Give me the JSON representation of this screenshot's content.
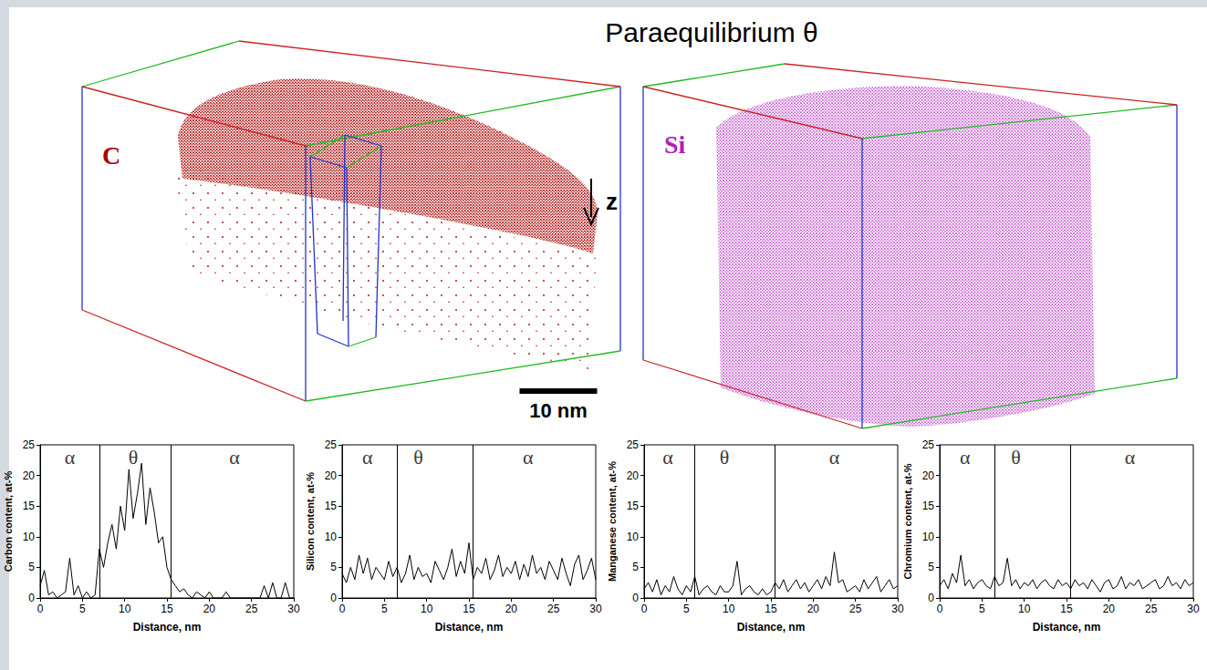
{
  "figure": {
    "title": "Paraequilibrium θ",
    "axis_label": "z",
    "maps": [
      {
        "label": "C",
        "color": "#a80000"
      },
      {
        "label": "Si",
        "color": "#b01fbf"
      }
    ],
    "scale_bar": {
      "length": 10,
      "label": "10 nm"
    }
  },
  "chart_data": [
    {
      "type": "line",
      "color": "#000000",
      "xlabel": "Distance, nm",
      "ylabel": "Carbon content, at-%",
      "x": [
        0,
        0.5,
        1,
        1.5,
        2,
        2.5,
        3,
        3.5,
        4,
        4.5,
        5,
        5.5,
        6,
        6.5,
        7,
        7.5,
        8,
        8.5,
        9,
        9.5,
        10,
        10.5,
        11,
        11.5,
        12,
        12.5,
        13,
        13.5,
        14,
        14.5,
        15,
        15.5,
        16,
        16.5,
        17,
        17.5,
        18,
        18.5,
        19,
        19.5,
        20,
        20.5,
        21,
        21.5,
        22,
        22.5,
        23,
        23.5,
        24,
        24.5,
        25,
        25.5,
        26,
        26.5,
        27,
        27.5,
        28,
        28.5,
        29,
        29.5,
        30
      ],
      "values": [
        2,
        4.5,
        0.5,
        1,
        0,
        0.5,
        1,
        6.5,
        0.5,
        2,
        0,
        1,
        0,
        0.5,
        8,
        5,
        9,
        12,
        8,
        15,
        11,
        21,
        13,
        17,
        22,
        12,
        18,
        14,
        9,
        10,
        5,
        3,
        2,
        1,
        1.5,
        0.5,
        0,
        1,
        0.5,
        0,
        1,
        0,
        0,
        0,
        1,
        0,
        0,
        0,
        0,
        0,
        0,
        0,
        0,
        2,
        0,
        2.5,
        0,
        0,
        2.5,
        0,
        0
      ],
      "xlim": [
        0,
        30
      ],
      "xticks": [
        0,
        5,
        10,
        15,
        20,
        25,
        30
      ],
      "ylim": [
        0,
        25
      ],
      "yticks": [
        0,
        5,
        10,
        15,
        20,
        25
      ],
      "phase_boundaries": [
        7,
        15.5
      ],
      "annotations": [
        {
          "text": "α",
          "x": 3.5
        },
        {
          "text": "θ",
          "x": 11
        },
        {
          "text": "α",
          "x": 23
        }
      ]
    },
    {
      "type": "line",
      "color": "#000000",
      "xlabel": "Distance, nm",
      "ylabel": "Silicon content, at-%",
      "x": [
        0,
        0.5,
        1,
        1.5,
        2,
        2.5,
        3,
        3.5,
        4,
        4.5,
        5,
        5.5,
        6,
        6.5,
        7,
        7.5,
        8,
        8.5,
        9,
        9.5,
        10,
        10.5,
        11,
        11.5,
        12,
        12.5,
        13,
        13.5,
        14,
        14.5,
        15,
        15.5,
        16,
        16.5,
        17,
        17.5,
        18,
        18.5,
        19,
        19.5,
        20,
        20.5,
        21,
        21.5,
        22,
        22.5,
        23,
        23.5,
        24,
        24.5,
        25,
        25.5,
        26,
        26.5,
        27,
        27.5,
        28,
        28.5,
        29,
        29.5,
        30
      ],
      "values": [
        4,
        2.5,
        5,
        3,
        7,
        4,
        6.5,
        3,
        5,
        4,
        3,
        6,
        3.5,
        5,
        2.5,
        4,
        7,
        3,
        5,
        3.5,
        4,
        2.5,
        6,
        4.5,
        3,
        5,
        8,
        3.5,
        6,
        4,
        9,
        3,
        5,
        4,
        6.5,
        3,
        4.5,
        7,
        3.5,
        5,
        4,
        6,
        3,
        5.5,
        3.5,
        7,
        4,
        5,
        3,
        6,
        4.5,
        3,
        6.5,
        4,
        2,
        5.5,
        7,
        3,
        4.5,
        6.5,
        3
      ],
      "xlim": [
        0,
        30
      ],
      "xticks": [
        0,
        5,
        10,
        15,
        20,
        25,
        30
      ],
      "ylim": [
        0,
        25
      ],
      "yticks": [
        0,
        5,
        10,
        15,
        20,
        25
      ],
      "phase_boundaries": [
        6.5,
        15.5
      ],
      "annotations": [
        {
          "text": "α",
          "x": 3
        },
        {
          "text": "θ",
          "x": 9
        },
        {
          "text": "α",
          "x": 22
        }
      ]
    },
    {
      "type": "line",
      "color": "#000000",
      "xlabel": "Distance, nm",
      "ylabel": "Manganese content, at-%",
      "x": [
        0,
        0.5,
        1,
        1.5,
        2,
        2.5,
        3,
        3.5,
        4,
        4.5,
        5,
        5.5,
        6,
        6.5,
        7,
        7.5,
        8,
        8.5,
        9,
        9.5,
        10,
        10.5,
        11,
        11.5,
        12,
        12.5,
        13,
        13.5,
        14,
        14.5,
        15,
        15.5,
        16,
        16.5,
        17,
        17.5,
        18,
        18.5,
        19,
        19.5,
        20,
        20.5,
        21,
        21.5,
        22,
        22.5,
        23,
        23.5,
        24,
        24.5,
        25,
        25.5,
        26,
        26.5,
        27,
        27.5,
        28,
        28.5,
        29,
        29.5,
        30
      ],
      "values": [
        1.5,
        2.5,
        1,
        3,
        0.5,
        2,
        1,
        3.5,
        1.5,
        0.5,
        2,
        1,
        3.5,
        0.5,
        1.5,
        2,
        1,
        0.5,
        2,
        1,
        1,
        2,
        6,
        0.5,
        1.5,
        2,
        1,
        0.5,
        1.5,
        0.5,
        1,
        2.5,
        1.5,
        3,
        1,
        2,
        3,
        1.5,
        2.5,
        1,
        2,
        3,
        1.5,
        3.5,
        2,
        7.5,
        2.5,
        3,
        1,
        1.5,
        2,
        1,
        3,
        1.5,
        2.5,
        3.5,
        1,
        2,
        3,
        1.5,
        2
      ],
      "xlim": [
        0,
        30
      ],
      "xticks": [
        0,
        5,
        10,
        15,
        20,
        25,
        30
      ],
      "ylim": [
        0,
        25
      ],
      "yticks": [
        0,
        5,
        10,
        15,
        20,
        25
      ],
      "phase_boundaries": [
        6,
        15.5
      ],
      "annotations": [
        {
          "text": "α",
          "x": 2.8
        },
        {
          "text": "θ",
          "x": 9.5
        },
        {
          "text": "α",
          "x": 22.5
        }
      ]
    },
    {
      "type": "line",
      "color": "#000000",
      "xlabel": "Distance, nm",
      "ylabel": "Chromium content, at-%",
      "x": [
        0,
        0.5,
        1,
        1.5,
        2,
        2.5,
        3,
        3.5,
        4,
        4.5,
        5,
        5.5,
        6,
        6.5,
        7,
        7.5,
        8,
        8.5,
        9,
        9.5,
        10,
        10.5,
        11,
        11.5,
        12,
        12.5,
        13,
        13.5,
        14,
        14.5,
        15,
        15.5,
        16,
        16.5,
        17,
        17.5,
        18,
        18.5,
        19,
        19.5,
        20,
        20.5,
        21,
        21.5,
        22,
        22.5,
        23,
        23.5,
        24,
        24.5,
        25,
        25.5,
        26,
        26.5,
        27,
        27.5,
        28,
        28.5,
        29,
        29.5,
        30
      ],
      "values": [
        2,
        3,
        1.5,
        4,
        2.5,
        7,
        2,
        3,
        1.5,
        2.5,
        3,
        2,
        1.5,
        3.5,
        2,
        2.5,
        6.5,
        2,
        3,
        1.5,
        2.5,
        2,
        3,
        1.5,
        2.5,
        3,
        2,
        1.5,
        3,
        2,
        2.5,
        1.5,
        3,
        2,
        2.5,
        1.5,
        3,
        2,
        1,
        2.5,
        3,
        1.5,
        2,
        3.5,
        1.5,
        2.5,
        2,
        3,
        1.5,
        2,
        2.5,
        3,
        1.5,
        2,
        3.5,
        2,
        2.5,
        1.5,
        3,
        2,
        2.5
      ],
      "xlim": [
        0,
        30
      ],
      "xticks": [
        0,
        5,
        10,
        15,
        20,
        25,
        30
      ],
      "ylim": [
        0,
        25
      ],
      "yticks": [
        0,
        5,
        10,
        15,
        20,
        25
      ],
      "phase_boundaries": [
        6.5,
        15.5
      ],
      "annotations": [
        {
          "text": "α",
          "x": 3
        },
        {
          "text": "θ",
          "x": 9
        },
        {
          "text": "α",
          "x": 22.5
        }
      ]
    }
  ]
}
